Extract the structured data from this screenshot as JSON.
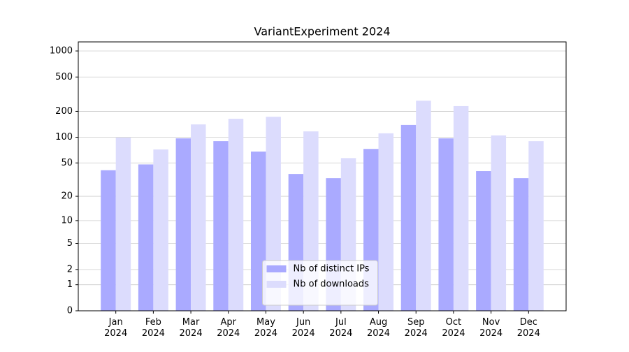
{
  "chart_data": {
    "type": "bar",
    "title": "VariantExperiment 2024",
    "categories": [
      "Jan\n2024",
      "Feb\n2024",
      "Mar\n2024",
      "Apr\n2024",
      "May\n2024",
      "Jun\n2024",
      "Jul\n2024",
      "Aug\n2024",
      "Sep\n2024",
      "Oct\n2024",
      "Nov\n2024",
      "Dec\n2024"
    ],
    "series": [
      {
        "name": "Nb of distinct IPs",
        "color": "#aaaaff",
        "values": [
          41,
          48,
          97,
          90,
          68,
          37,
          33,
          73,
          139,
          97,
          40,
          33
        ]
      },
      {
        "name": "Nb of downloads",
        "color": "#dcdcfd",
        "values": [
          99,
          72,
          141,
          164,
          173,
          117,
          57,
          111,
          266,
          230,
          105,
          90
        ]
      }
    ],
    "yscale": "log1p",
    "ylim": [
      0,
      1273
    ],
    "yticks": [
      0,
      1,
      2,
      5,
      10,
      20,
      50,
      100,
      200,
      500,
      1000
    ],
    "grid": true,
    "legend": "lower center"
  }
}
